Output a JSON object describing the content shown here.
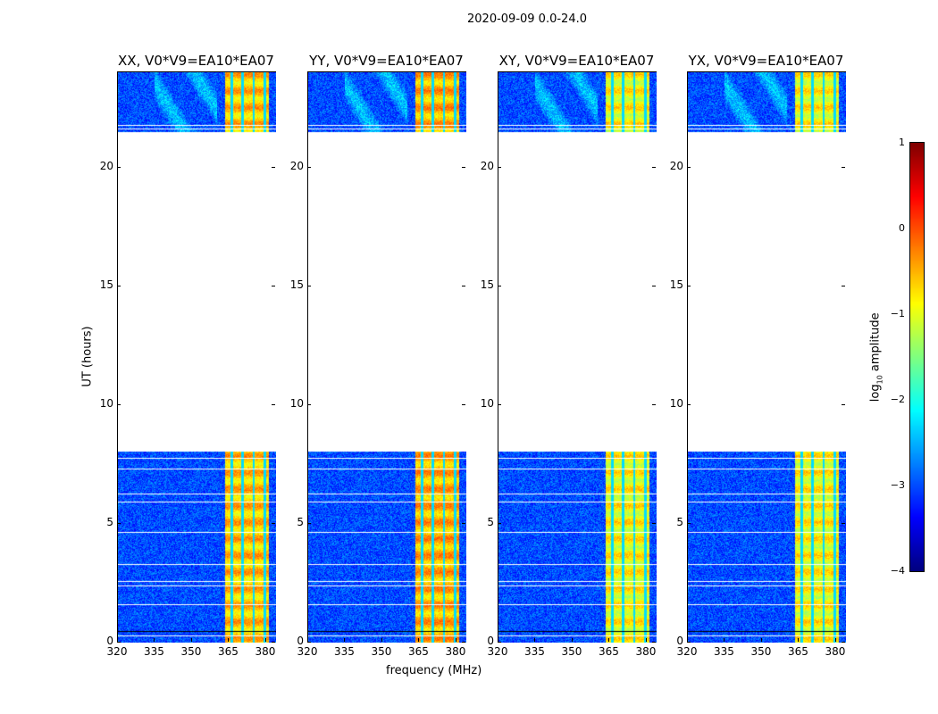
{
  "chart_data": {
    "type": "heatmap",
    "title": "2020-09-09 0.0-24.0",
    "xlabel": "frequency (MHz)",
    "ylabel": "UT (hours)",
    "xlim": [
      320,
      384
    ],
    "ylim": [
      0,
      24
    ],
    "xticks": [
      "320",
      "335",
      "350",
      "365",
      "380"
    ],
    "xtick_values": [
      320,
      335,
      350,
      365,
      380
    ],
    "yticks": [
      "0",
      "5",
      "10",
      "15",
      "20"
    ],
    "ytick_values": [
      0,
      5,
      10,
      15,
      20
    ],
    "panels": [
      {
        "title": "XX, V0*V9=EA10*EA07",
        "rfi_level": -0.6
      },
      {
        "title": "YY, V0*V9=EA10*EA07",
        "rfi_level": -0.5
      },
      {
        "title": "XY, V0*V9=EA10*EA07",
        "rfi_level": -0.9
      },
      {
        "title": "YX, V0*V9=EA10*EA07",
        "rfi_level": -0.9
      }
    ],
    "data_time_ranges_hours": [
      [
        0,
        8.05
      ],
      [
        21.5,
        24
      ]
    ],
    "background_level": -3.0,
    "rfi_band_MHz": [
      363.5,
      381
    ],
    "rfi_dropout_channels_MHz": [
      366,
      370.5,
      375,
      379.5
    ],
    "colorbar": {
      "label": "log10 amplitude",
      "label_main": "log",
      "label_sub": "10",
      "label_rest": " amplitude",
      "range": [
        -4,
        1
      ],
      "ticks": [
        "1",
        "0",
        "−1",
        "−2",
        "−3",
        "−4"
      ],
      "tick_values": [
        1,
        0,
        -1,
        -2,
        -3,
        -4
      ],
      "colormap": "jet"
    }
  }
}
